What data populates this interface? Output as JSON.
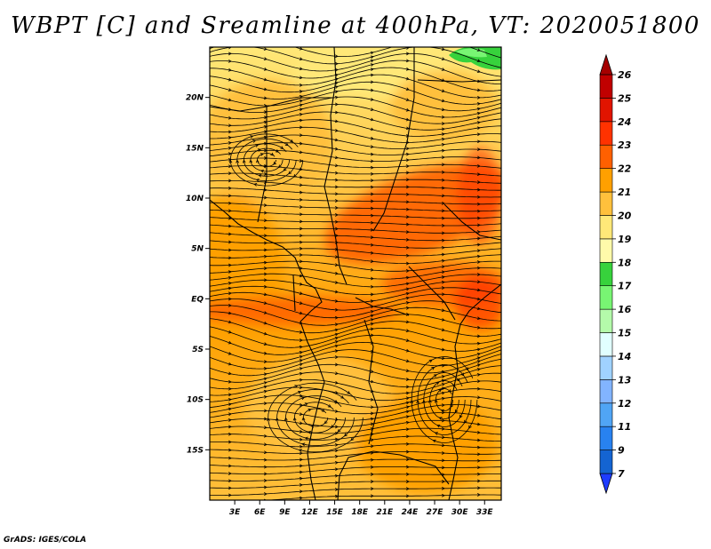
{
  "title": "WBPT [C] and Sreamline at 400hPa, VT: 2020051800",
  "credit": "GrADS: IGES/COLA",
  "chart_data": {
    "type": "heatmap",
    "title": "WBPT [C] and Sreamline at 400hPa, VT: 2020051800",
    "variable": "WBPT [C]",
    "overlay": "Streamline",
    "level": "400hPa",
    "valid_time": "2020051800",
    "lon_range": [
      0,
      35
    ],
    "lat_range": [
      -20,
      25
    ],
    "x_ticks": [
      {
        "value": 3,
        "label": "3E"
      },
      {
        "value": 6,
        "label": "6E"
      },
      {
        "value": 9,
        "label": "9E"
      },
      {
        "value": 12,
        "label": "12E"
      },
      {
        "value": 15,
        "label": "15E"
      },
      {
        "value": 18,
        "label": "18E"
      },
      {
        "value": 21,
        "label": "21E"
      },
      {
        "value": 24,
        "label": "24E"
      },
      {
        "value": 27,
        "label": "27E"
      },
      {
        "value": 30,
        "label": "30E"
      },
      {
        "value": 33,
        "label": "33E"
      }
    ],
    "y_ticks": [
      {
        "value": 20,
        "label": "20N"
      },
      {
        "value": 15,
        "label": "15N"
      },
      {
        "value": 10,
        "label": "10N"
      },
      {
        "value": 5,
        "label": "5N"
      },
      {
        "value": 0,
        "label": "EQ"
      },
      {
        "value": -5,
        "label": "5S"
      },
      {
        "value": -10,
        "label": "10S"
      },
      {
        "value": -15,
        "label": "15S"
      }
    ],
    "colorbar": {
      "labels": [
        "7",
        "9",
        "11",
        "12",
        "13",
        "14",
        "15",
        "16",
        "17",
        "18",
        "19",
        "20",
        "21",
        "22",
        "23",
        "24",
        "25",
        "26"
      ],
      "colors": [
        "#1e3cff",
        "#1464d2",
        "#2882f0",
        "#50a5f5",
        "#82b4ff",
        "#a0d2ff",
        "#e1ffff",
        "#b4faaa",
        "#78f573",
        "#37d23c",
        "#fffaaa",
        "#ffe878",
        "#ffc03c",
        "#ffa000",
        "#ff6000",
        "#ff3200",
        "#e11400",
        "#c00000",
        "#a50000"
      ]
    }
  }
}
